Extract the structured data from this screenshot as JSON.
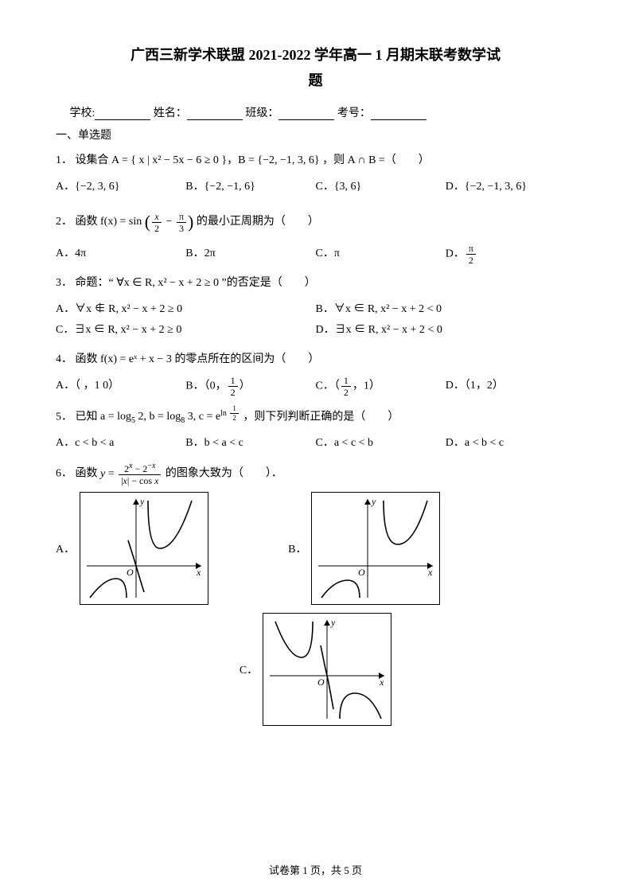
{
  "title_line1": "广西三新学术联盟 2021-2022 学年高一 1 月期末联考数学试",
  "title_line2": "题",
  "info": {
    "school": "学校:",
    "name": "姓名：",
    "class": "班级：",
    "examno": "考号："
  },
  "section1": "一、单选题",
  "questions": [
    {
      "num": "1．",
      "stem_before": "设集合 ",
      "stem_math": "A = { x | x² − 5x − 6 ≥ 0 }，B = {−2, −1, 3, 6}",
      "stem_after": "，则 A ∩ B =（　　）",
      "options": [
        "A．{−2, 3, 6}",
        "B．{−2, −1, 6}",
        "C．{3, 6}",
        "D．{−2, −1, 3, 6}"
      ],
      "opt_cols": "opt4"
    },
    {
      "num": "2．",
      "stem_html": true,
      "options": [
        "A．4π",
        "B．2π",
        "C．π",
        "D．<span class=\"frac\"><span class=\"num\">π</span><span class=\"den\">2</span></span>"
      ],
      "opt_cols": "opt4"
    },
    {
      "num": "3．",
      "stem_before": "命题：“",
      "stem_math": "∀x ∈ R, x² − x + 2 ≥ 0",
      "stem_after": "”的否定是（　　）",
      "options": [
        "A．∀x ∉ R, x² − x + 2 ≥ 0",
        "B．∀x ∈ R, x² − x + 2 < 0",
        "C．∃x ∈ R, x² − x + 2 ≥ 0",
        "D．∃x ∈ R, x² − x + 2 < 0"
      ],
      "opt_cols": "opt2"
    },
    {
      "num": "4．",
      "stem_before": "函数 ",
      "stem_math": "f(x) = eˣ + x − 3",
      "stem_after": " 的零点所在的区间为（　　）",
      "options": [
        "A．（ ，1 0）",
        "B．（0，<span class=\"frac\"><span class=\"num\">1</span><span class=\"den\">2</span></span>）",
        "C．（<span class=\"frac\"><span class=\"num\">1</span><span class=\"den\">2</span></span>，1）",
        "D．（1，2）"
      ],
      "opt_cols": "opt4"
    },
    {
      "num": "5．",
      "stem_before": "已知 ",
      "stem_math": "a = log<sub>5</sub> 2, b = log<sub>8</sub> 3, c = e<sup>ln <span class=\"frac\" style=\"font-size:9px;\"><span class=\"num\" style=\"font-size:9px;\">1</span><span class=\"den\" style=\"font-size:9px;\">2</span></span></sup>",
      "stem_after": "，则下列判断正确的是（　　）",
      "options": [
        "A．c < b < a",
        "B．b < a < c",
        "C．a < c < b",
        "D．a < b < c"
      ],
      "opt_cols": "opt4"
    },
    {
      "num": "6．",
      "stem_html6": true
    }
  ],
  "q2_stem_prefix": "函数 ",
  "q2_stem_func": "f(x) = sin",
  "q2_stem_suffix": " 的最小正周期为（　　）",
  "q6_stem_prefix": "函数 ",
  "q6_stem_suffix": " 的图象大致为（　　）．",
  "graphs": {
    "width": 160,
    "height": 140,
    "stroke": "#000000",
    "stroke_width": 1.6,
    "axis_color": "#000000",
    "label_y": "y",
    "label_x": "x",
    "label_O": "O"
  },
  "footer": "试卷第 1 页，共 5 页"
}
